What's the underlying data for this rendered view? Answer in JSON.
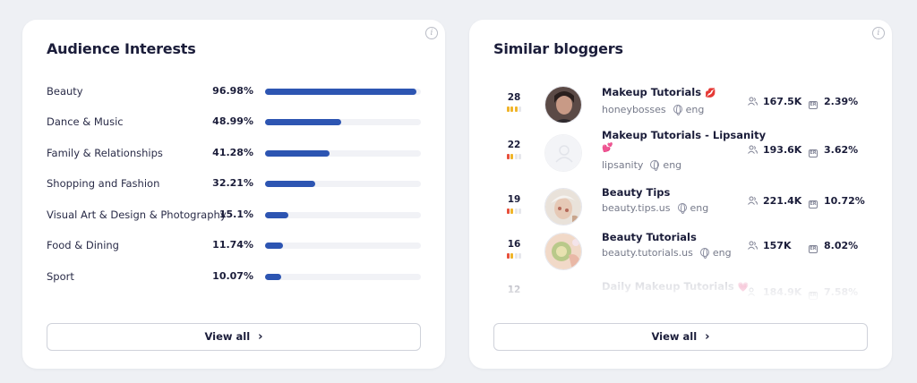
{
  "interests": {
    "title": "Audience Interests",
    "bar_color": "#2d55b2",
    "items": [
      {
        "label": "Beauty",
        "pct": "96.98%",
        "value": 0.9698
      },
      {
        "label": "Dance & Music",
        "pct": "48.99%",
        "value": 0.4899
      },
      {
        "label": "Family & Relationships",
        "pct": "41.28%",
        "value": 0.4128
      },
      {
        "label": "Shopping and Fashion",
        "pct": "32.21%",
        "value": 0.3221
      },
      {
        "label": "Visual Art & Design & Photography",
        "pct": "15.1%",
        "value": 0.151
      },
      {
        "label": "Food & Dining",
        "pct": "11.74%",
        "value": 0.1174
      },
      {
        "label": "Sport",
        "pct": "10.07%",
        "value": 0.1007
      }
    ],
    "view_all": "View all"
  },
  "bloggers": {
    "title": "Similar bloggers",
    "items": [
      {
        "rank": "28",
        "name": "Makeup Tutorials",
        "emoji": "💋",
        "handle": "honeybosses",
        "lang": "eng",
        "followers": "167.5K",
        "er": "2.39%",
        "quality": [
          "#f0b429",
          "#f0b429",
          "#f0b429",
          "#e6e7ec"
        ]
      },
      {
        "rank": "22",
        "name": "Makeup Tutorials - Lipsanity",
        "emoji": "💕",
        "handle": "lipsanity",
        "lang": "eng",
        "followers": "193.6K",
        "er": "3.62%",
        "quality": [
          "#e8503a",
          "#f0b429",
          "#e6e7ec",
          "#e6e7ec"
        ]
      },
      {
        "rank": "19",
        "name": "Beauty Tips",
        "emoji": "",
        "handle": "beauty.tips.us",
        "lang": "eng",
        "followers": "221.4K",
        "er": "10.72%",
        "quality": [
          "#e8503a",
          "#f0b429",
          "#e6e7ec",
          "#e6e7ec"
        ]
      },
      {
        "rank": "16",
        "name": "Beauty Tutorials",
        "emoji": "",
        "handle": "beauty.tutorials.us",
        "lang": "eng",
        "followers": "157K",
        "er": "8.02%",
        "quality": [
          "#e8503a",
          "#f0b429",
          "#e6e7ec",
          "#e6e7ec"
        ]
      },
      {
        "rank": "12",
        "name": "Daily Makeup Tutorials",
        "emoji": "💗",
        "handle": "",
        "lang": "",
        "followers": "184.9K",
        "er": "7.58%",
        "quality": [
          "#f0b429",
          "#e6e7ec",
          "#e6e7ec",
          "#e6e7ec"
        ]
      }
    ],
    "view_all": "View all"
  }
}
